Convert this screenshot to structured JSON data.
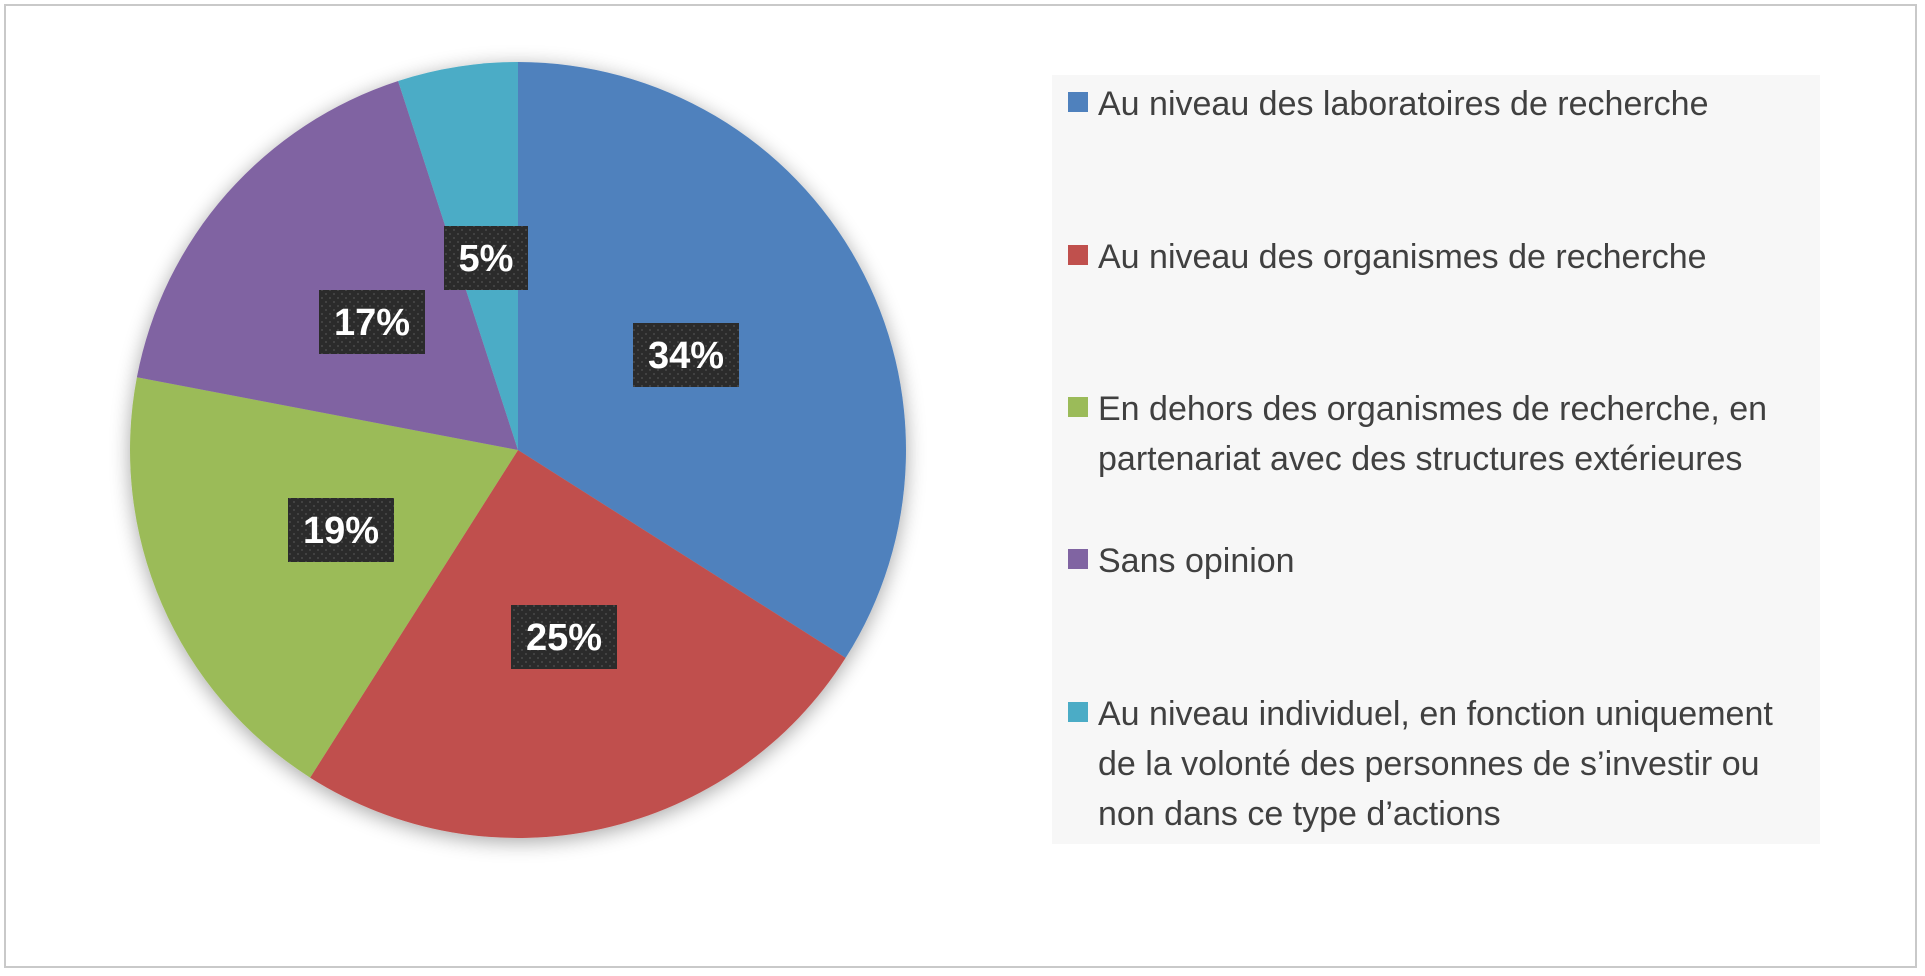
{
  "chart_data": {
    "type": "pie",
    "title": "",
    "slices": [
      {
        "label": "Au niveau des laboratoires de recherche",
        "value": 34,
        "value_label": "34%",
        "color": "#4f81bd"
      },
      {
        "label": "Au niveau des organismes de recherche",
        "value": 25,
        "value_label": "25%",
        "color": "#c0504d"
      },
      {
        "label": "En dehors des organismes de recherche, en partenariat avec des structures extérieures",
        "value": 19,
        "value_label": "19%",
        "color": "#9bbb59"
      },
      {
        "label": "Sans opinion",
        "value": 17,
        "value_label": "17%",
        "color": "#8064a2"
      },
      {
        "label": "Au niveau individuel, en fonction uniquement de la volonté des personnes de s’investir ou non dans ce type d’actions",
        "value": 5,
        "value_label": "5%",
        "color": "#4bacc6"
      }
    ],
    "start_angle": "12 o'clock",
    "direction": "clockwise",
    "legend_position": "right",
    "data_label_style": "dark box, white bold text"
  }
}
